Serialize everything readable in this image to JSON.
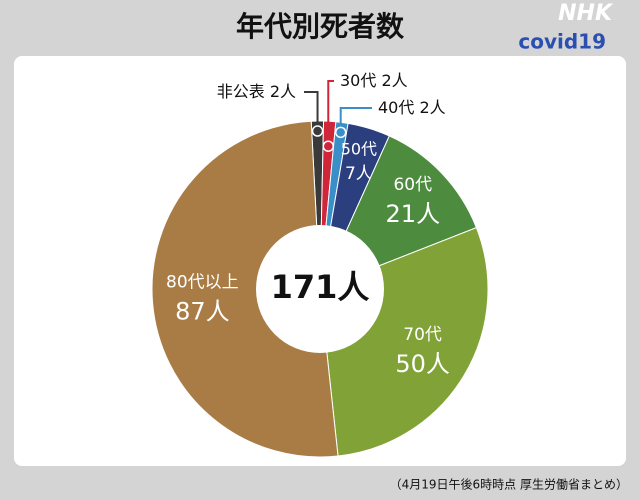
{
  "chart_data": {
    "type": "donut",
    "title": "年代別死者数",
    "tag": "covid19",
    "logo": "NHK",
    "center_label": "171人",
    "categories": [
      "非公表",
      "30代",
      "40代",
      "50代",
      "60代",
      "70代",
      "80代以上"
    ],
    "values": [
      2,
      2,
      2,
      7,
      21,
      50,
      87
    ],
    "value_labels": [
      "2人",
      "2人",
      "2人",
      "7人",
      "21人",
      "50人",
      "87人"
    ],
    "colors": [
      "#3a3a3a",
      "#d0263a",
      "#3a8fc8",
      "#2b3e7e",
      "#4d8c3e",
      "#80a236",
      "#a97c46"
    ],
    "footnote": "（4月19日午後6時時点 厚生労働省まとめ）"
  }
}
